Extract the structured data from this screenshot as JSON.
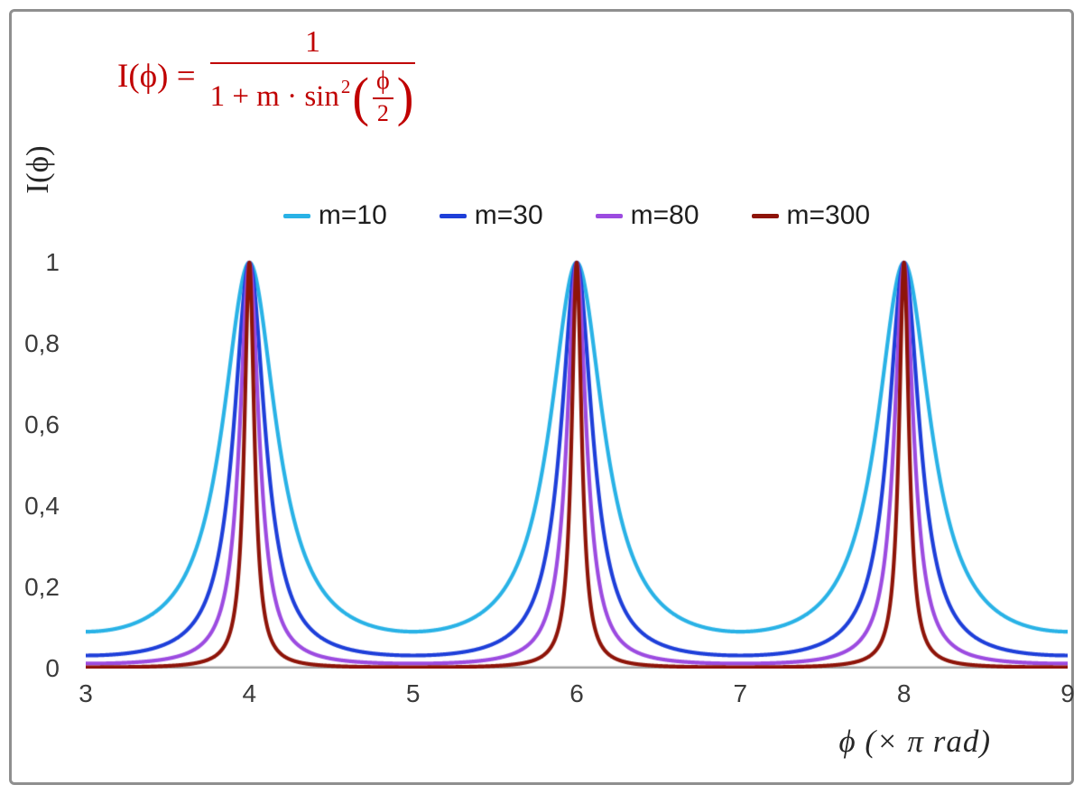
{
  "figure": {
    "y_axis_title": "I(ϕ)",
    "x_axis_title": "ϕ  (× π rad)"
  },
  "formula": {
    "lhs": "I(ϕ) =",
    "numerator": "1",
    "denominator_prefix": "1 + m · sin",
    "exponent": "2",
    "inner_numerator": "ϕ",
    "inner_denominator": "2",
    "color": "#c00000"
  },
  "chart_data": {
    "type": "line",
    "title": "",
    "formula": "I(ϕ) = 1 / (1 + m·sin²(ϕ/2)), with ϕ in units of π rad",
    "xlabel": "ϕ (× π rad)",
    "ylabel": "I(ϕ)",
    "xlim": [
      3,
      9
    ],
    "ylim": [
      0,
      1.6
    ],
    "x_ticks": [
      3,
      4,
      5,
      6,
      7,
      8,
      9
    ],
    "y_ticks": [
      {
        "value": 0,
        "label": "0"
      },
      {
        "value": 0.2,
        "label": "0,2"
      },
      {
        "value": 0.4,
        "label": "0,4"
      },
      {
        "value": 0.6,
        "label": "0,6"
      },
      {
        "value": 0.8,
        "label": "0,8"
      },
      {
        "value": 1,
        "label": "1"
      }
    ],
    "grid": false,
    "legend_position": "top-center",
    "axis_line_color": "#a6a6a6",
    "peaks_at_x": [
      4,
      6,
      8
    ],
    "peak_value": 1,
    "series": [
      {
        "name": "m=10",
        "m": 10,
        "color": "#29b2e6",
        "peak_value": 1,
        "min_value": 0.091
      },
      {
        "name": "m=30",
        "m": 30,
        "color": "#1e3fd9",
        "peak_value": 1,
        "min_value": 0.032
      },
      {
        "name": "m=80",
        "m": 80,
        "color": "#9c4be0",
        "peak_value": 1,
        "min_value": 0.012
      },
      {
        "name": "m=300",
        "m": 300,
        "color": "#8e1409",
        "peak_value": 1,
        "min_value": 0.003
      }
    ]
  }
}
